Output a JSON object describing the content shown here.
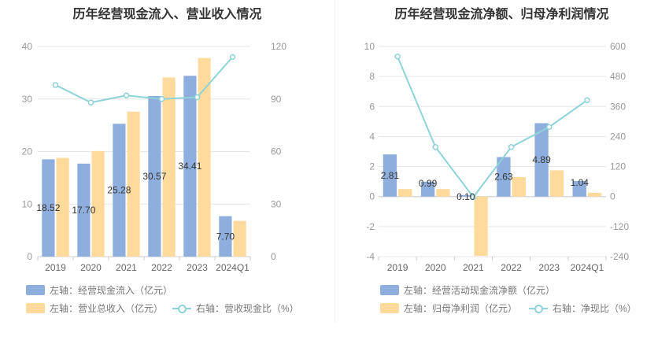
{
  "charts": [
    {
      "title": "历年经营现金流入、营业收入情况",
      "legend": {
        "bar1": "左轴：经营现金流入（亿元）",
        "bar2": "左轴：营业总收入（亿元）",
        "line": "右轴：营收现金比（%）"
      }
    },
    {
      "title": "历年经营现金流净额、归母净利润情况",
      "legend": {
        "bar1": "左轴：经营活动现金流净额（亿元）",
        "bar2": "左轴：归母净利润（亿元）",
        "line": "右轴：净现比（%）"
      }
    }
  ],
  "colors": {
    "bar1": "#8eaedd",
    "bar2": "#fedb9c",
    "line": "#8dd3d8"
  },
  "chart_data": [
    {
      "type": "bar",
      "categories": [
        "2019",
        "2020",
        "2021",
        "2022",
        "2023",
        "2024Q1"
      ],
      "y_left": {
        "min": 0,
        "max": 40,
        "ticks": [
          0,
          10,
          20,
          30,
          40
        ]
      },
      "y_right": {
        "min": 0,
        "max": 120,
        "ticks": [
          0,
          30,
          60,
          90,
          120
        ]
      },
      "series": [
        {
          "name": "左轴：经营现金流入（亿元）",
          "axis": "left",
          "kind": "bar",
          "values": [
            18.52,
            17.7,
            25.28,
            30.57,
            34.41,
            7.7
          ],
          "labels": [
            "18.52",
            "17.70",
            "25.28",
            "30.57",
            "34.41",
            "7.70"
          ]
        },
        {
          "name": "左轴：营业总收入（亿元）",
          "axis": "left",
          "kind": "bar",
          "values": [
            18.8,
            20.1,
            27.6,
            34.1,
            37.8,
            6.8
          ]
        },
        {
          "name": "右轴：营收现金比（%）",
          "axis": "right",
          "kind": "line",
          "values": [
            98,
            88,
            92,
            90,
            91,
            114
          ]
        }
      ]
    },
    {
      "type": "bar",
      "categories": [
        "2019",
        "2020",
        "2021",
        "2022",
        "2023",
        "2024Q1"
      ],
      "y_left": {
        "min": -4,
        "max": 10,
        "ticks": [
          -4,
          -2,
          0,
          2,
          4,
          6,
          8,
          10
        ]
      },
      "y_right": {
        "min": -240,
        "max": 600,
        "ticks": [
          -240,
          -120,
          0,
          120,
          240,
          360,
          480,
          600
        ]
      },
      "series": [
        {
          "name": "左轴：经营活动现金流净额（亿元）",
          "axis": "left",
          "kind": "bar",
          "values": [
            2.81,
            0.99,
            0.1,
            2.63,
            4.89,
            1.04
          ],
          "labels": [
            "2.81",
            "0.99",
            "0.10",
            "2.63",
            "4.89",
            "1.04"
          ]
        },
        {
          "name": "左轴：归母净利润（亿元）",
          "axis": "left",
          "kind": "bar",
          "values": [
            0.5,
            0.5,
            -3.95,
            1.3,
            1.75,
            0.25
          ]
        },
        {
          "name": "右轴：净现比（%）",
          "axis": "right",
          "kind": "line",
          "values": [
            560,
            198,
            -2,
            198,
            278,
            385
          ]
        }
      ]
    }
  ]
}
